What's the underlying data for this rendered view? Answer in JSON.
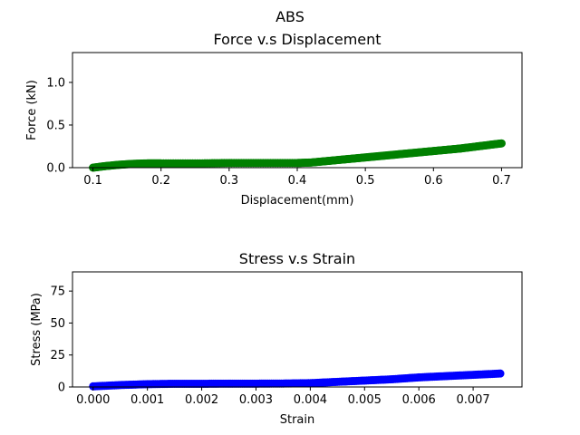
{
  "figure": {
    "suptitle": "ABS"
  },
  "chart_data": [
    {
      "type": "scatter",
      "title": "Force v.s Displacement",
      "xlabel": "Displacement(mm)",
      "ylabel": "Force (kN)",
      "xlim": [
        0.07,
        0.73
      ],
      "ylim": [
        0,
        1.35
      ],
      "xticks": [
        0.1,
        0.2,
        0.3,
        0.4,
        0.5,
        0.6,
        0.7
      ],
      "xtick_labels": [
        "0.1",
        "0.2",
        "0.3",
        "0.4",
        "0.5",
        "0.6",
        "0.7"
      ],
      "yticks": [
        0,
        0.5,
        1.0
      ],
      "ytick_labels": [
        "0.0",
        "0.5",
        "1.0"
      ],
      "grid": false,
      "color": "#008000",
      "series": [
        {
          "x": [
            0.1,
            0.12,
            0.14,
            0.16,
            0.18,
            0.2,
            0.25,
            0.3,
            0.35,
            0.4,
            0.42,
            0.44,
            0.46,
            0.48,
            0.5,
            0.52,
            0.54,
            0.56,
            0.58,
            0.6,
            0.62,
            0.64,
            0.66,
            0.68,
            0.7
          ],
          "y": [
            0.0,
            0.02,
            0.035,
            0.045,
            0.05,
            0.05,
            0.05,
            0.055,
            0.055,
            0.055,
            0.06,
            0.075,
            0.09,
            0.105,
            0.12,
            0.135,
            0.15,
            0.165,
            0.18,
            0.195,
            0.21,
            0.225,
            0.245,
            0.265,
            0.285
          ]
        }
      ]
    },
    {
      "type": "scatter",
      "title": "Stress v.s Strain",
      "xlabel": "Strain",
      "ylabel": "Stress (MPa)",
      "xlim": [
        -0.00038,
        0.0079
      ],
      "ylim": [
        0,
        90
      ],
      "xticks": [
        0,
        0.001,
        0.002,
        0.003,
        0.004,
        0.005,
        0.006,
        0.007
      ],
      "xtick_labels": [
        "0.000",
        "0.001",
        "0.002",
        "0.003",
        "0.004",
        "0.005",
        "0.006",
        "0.007"
      ],
      "yticks": [
        0,
        25,
        50,
        75
      ],
      "ytick_labels": [
        "0",
        "25",
        "50",
        "75"
      ],
      "grid": false,
      "color": "#0000ff",
      "series": [
        {
          "x": [
            0.0,
            0.0005,
            0.001,
            0.0015,
            0.002,
            0.0025,
            0.003,
            0.0035,
            0.004,
            0.0045,
            0.005,
            0.0055,
            0.006,
            0.0065,
            0.007,
            0.0075
          ],
          "y": [
            0.5,
            1.5,
            2.2,
            2.5,
            2.5,
            2.6,
            2.6,
            2.7,
            3.0,
            4.0,
            5.0,
            6.0,
            7.5,
            8.5,
            9.5,
            10.5
          ]
        }
      ]
    }
  ]
}
